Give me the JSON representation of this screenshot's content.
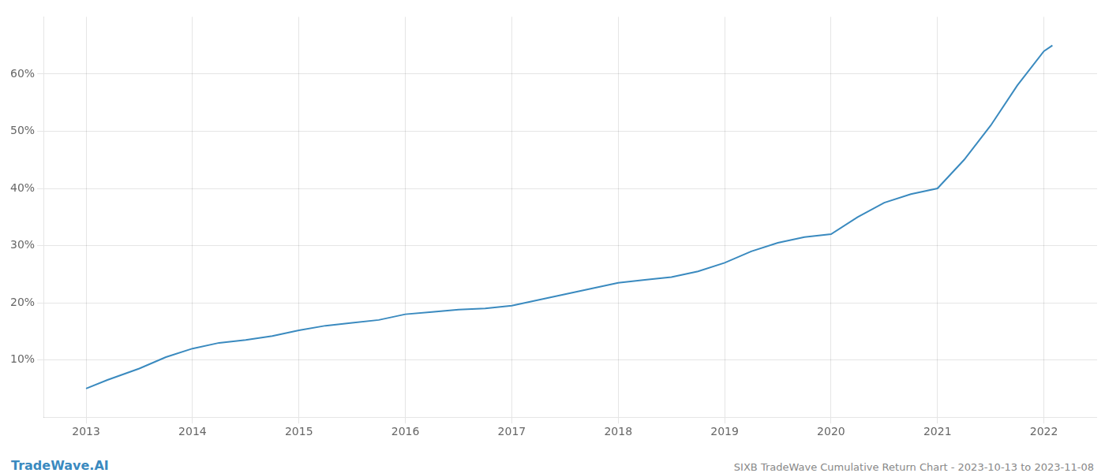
{
  "chart_data": {
    "type": "line",
    "title": "SIXB TradeWave Cumulative Return Chart - 2023-10-13 to 2023-11-08",
    "annotations": [
      "TradeWave.AI"
    ],
    "x": [
      2013.0,
      2013.2,
      2013.5,
      2013.75,
      2014.0,
      2014.25,
      2014.5,
      2014.75,
      2015.0,
      2015.25,
      2015.5,
      2015.75,
      2016.0,
      2016.25,
      2016.5,
      2016.75,
      2017.0,
      2017.25,
      2017.5,
      2017.75,
      2018.0,
      2018.25,
      2018.5,
      2018.75,
      2019.0,
      2019.25,
      2019.5,
      2019.75,
      2020.0,
      2020.25,
      2020.5,
      2020.75,
      2021.0,
      2021.25,
      2021.5,
      2021.75,
      2022.0,
      2022.08
    ],
    "values": [
      5.0,
      6.5,
      8.5,
      10.5,
      12.0,
      13.0,
      13.5,
      14.2,
      15.2,
      16.0,
      16.5,
      17.0,
      18.0,
      18.4,
      18.8,
      19.0,
      19.5,
      20.5,
      21.5,
      22.5,
      23.5,
      24.0,
      24.5,
      25.5,
      27.0,
      29.0,
      30.5,
      31.5,
      32.0,
      35.0,
      37.5,
      39.0,
      40.0,
      45.0,
      51.0,
      58.0,
      64.0,
      65.0
    ],
    "color": "#3a8abf",
    "xlim": [
      2012.6,
      2022.5
    ],
    "xticks": [
      2013,
      2014,
      2015,
      2016,
      2017,
      2018,
      2019,
      2020,
      2021,
      2022
    ],
    "ylim": [
      0,
      70
    ],
    "yticks": [
      {
        "value": 10,
        "label": "10%"
      },
      {
        "value": 20,
        "label": "20%"
      },
      {
        "value": 30,
        "label": "30%"
      },
      {
        "value": 40,
        "label": "40%"
      },
      {
        "value": 50,
        "label": "50%"
      },
      {
        "value": 60,
        "label": "60%"
      }
    ],
    "grid": true
  }
}
